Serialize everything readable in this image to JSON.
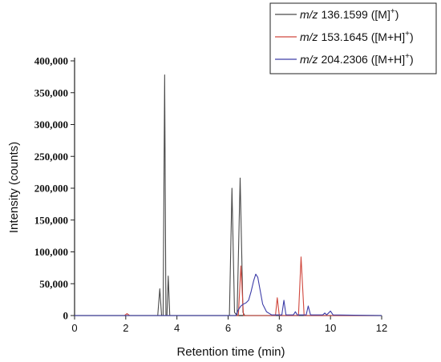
{
  "chart_data": {
    "type": "line",
    "xlabel": "Retention time (min)",
    "ylabel": "Intensity (counts)",
    "xlim": [
      0,
      12
    ],
    "ylim": [
      0,
      400000
    ],
    "x_ticks": [
      0,
      2,
      4,
      6,
      8,
      10,
      12
    ],
    "y_ticks": [
      0,
      50000,
      100000,
      150000,
      200000,
      250000,
      300000,
      350000,
      400000
    ],
    "x_tick_labels": [
      "0",
      "2",
      "4",
      "6",
      "8",
      "10",
      "12"
    ],
    "y_tick_labels": [
      "0",
      "50,000",
      "100,000",
      "150,000",
      "200,000",
      "250,000",
      "300,000",
      "350,000",
      "400,000"
    ],
    "grid": false,
    "legend_position": "top-right",
    "series": [
      {
        "name": "m/z 136.1599 ([M]+)",
        "legend_italic": "m/z",
        "legend_rest": " 136.1599 ([M]",
        "legend_sup": "+",
        "legend_end": ")",
        "color": "#4a4a4a",
        "points": [
          [
            0,
            0
          ],
          [
            3.25,
            0
          ],
          [
            3.33,
            42000
          ],
          [
            3.4,
            0
          ],
          [
            3.46,
            0
          ],
          [
            3.52,
            378000
          ],
          [
            3.57,
            0
          ],
          [
            3.61,
            0
          ],
          [
            3.66,
            62000
          ],
          [
            3.72,
            0
          ],
          [
            6.05,
            0
          ],
          [
            6.15,
            200000
          ],
          [
            6.25,
            5000
          ],
          [
            6.35,
            0
          ],
          [
            6.47,
            216000
          ],
          [
            6.58,
            5000
          ],
          [
            6.65,
            0
          ],
          [
            12,
            0
          ]
        ]
      },
      {
        "name": "m/z 153.1645 ([M+H]+)",
        "legend_italic": "m/z",
        "legend_rest": " 153.1645 ([M+H]",
        "legend_sup": "+",
        "legend_end": ")",
        "color": "#d0473d",
        "points": [
          [
            0,
            0
          ],
          [
            1.95,
            0
          ],
          [
            2.05,
            3000
          ],
          [
            2.15,
            0
          ],
          [
            6.4,
            0
          ],
          [
            6.5,
            78000
          ],
          [
            6.6,
            0
          ],
          [
            7.85,
            0
          ],
          [
            7.92,
            28000
          ],
          [
            8.0,
            0
          ],
          [
            8.75,
            0
          ],
          [
            8.85,
            92000
          ],
          [
            8.97,
            0
          ],
          [
            12,
            0
          ]
        ]
      },
      {
        "name": "m/z 204.2306 ([M+H]+)",
        "legend_italic": "m/z",
        "legend_rest": " 204.2306 ([M+H]",
        "legend_sup": "+",
        "legend_end": ")",
        "color": "#3d3da8",
        "points": [
          [
            0,
            0
          ],
          [
            6.3,
            0
          ],
          [
            6.4,
            9000
          ],
          [
            6.5,
            15000
          ],
          [
            6.6,
            18000
          ],
          [
            6.7,
            20000
          ],
          [
            6.8,
            24000
          ],
          [
            6.9,
            38000
          ],
          [
            7.0,
            55000
          ],
          [
            7.08,
            65000
          ],
          [
            7.16,
            60000
          ],
          [
            7.25,
            40000
          ],
          [
            7.35,
            18000
          ],
          [
            7.5,
            6000
          ],
          [
            7.7,
            1000
          ],
          [
            8.1,
            1000
          ],
          [
            8.18,
            24000
          ],
          [
            8.26,
            1000
          ],
          [
            8.55,
            1000
          ],
          [
            8.63,
            6000
          ],
          [
            8.7,
            1000
          ],
          [
            9.05,
            1000
          ],
          [
            9.13,
            15000
          ],
          [
            9.22,
            1000
          ],
          [
            9.7,
            1000
          ],
          [
            9.78,
            4000
          ],
          [
            9.85,
            1000
          ],
          [
            10.0,
            7000
          ],
          [
            10.1,
            1000
          ],
          [
            12,
            0
          ]
        ]
      }
    ]
  }
}
